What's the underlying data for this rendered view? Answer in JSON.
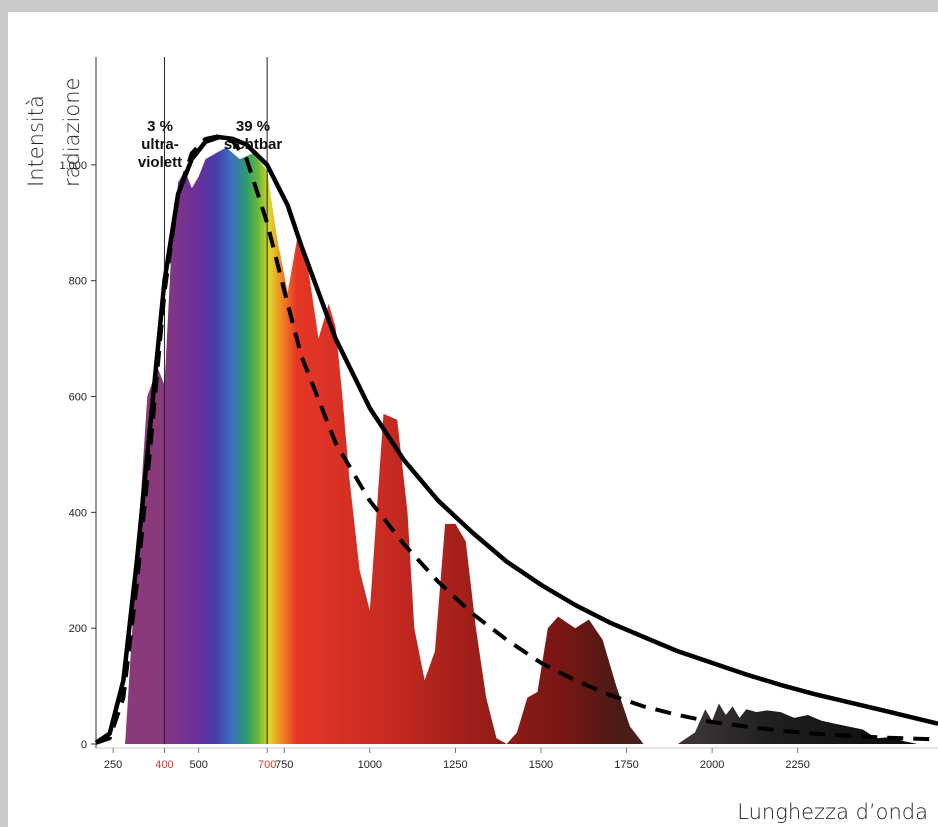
{
  "chart_data": {
    "type": "area",
    "title": "",
    "ylabel": [
      "Intensità",
      "radiazione"
    ],
    "xlabel": "Lunghezza d’onda",
    "x_ticks": [
      250,
      400,
      500,
      700,
      750,
      1000,
      1250,
      1500,
      1750,
      2000,
      2250
    ],
    "x_ticks_highlighted": [
      400,
      700
    ],
    "y_ticks": [
      0,
      200,
      400,
      600,
      800,
      1000
    ],
    "y_tick_labels": [
      "0",
      "200",
      "400",
      "600",
      "800",
      "1.000"
    ],
    "xlim": [
      200,
      2660
    ],
    "ylim": [
      0,
      1100
    ],
    "band_dividers": [
      400,
      700
    ],
    "bands": [
      {
        "percent": "3 %",
        "label_lines": [
          "ultra-",
          "violett"
        ]
      },
      {
        "percent": "39 %",
        "label_lines": [
          "sichtbar"
        ]
      }
    ],
    "series": [
      {
        "style": "solid-black-line",
        "x": [
          200,
          240,
          280,
          320,
          360,
          400,
          440,
          480,
          520,
          560,
          600,
          640,
          700,
          760,
          800,
          900,
          1000,
          1100,
          1200,
          1300,
          1400,
          1500,
          1600,
          1700,
          1800,
          1900,
          2000,
          2100,
          2200,
          2300,
          2400,
          2500,
          2660
        ],
        "y": [
          2,
          18,
          110,
          320,
          560,
          800,
          950,
          1010,
          1040,
          1048,
          1045,
          1035,
          1000,
          930,
          860,
          700,
          580,
          490,
          420,
          365,
          315,
          275,
          240,
          210,
          185,
          160,
          140,
          120,
          102,
          86,
          72,
          58,
          35
        ]
      },
      {
        "style": "dashed-black-line",
        "x": [
          200,
          240,
          280,
          320,
          360,
          400,
          440,
          480,
          520,
          560,
          600,
          640,
          700,
          760,
          800,
          900,
          1000,
          1100,
          1200,
          1300,
          1400,
          1500,
          1600,
          1700,
          1800,
          1900,
          2000,
          2100,
          2200,
          2300,
          2400,
          2500,
          2660
        ],
        "y": [
          2,
          10,
          80,
          280,
          520,
          780,
          950,
          1020,
          1045,
          1050,
          1040,
          1010,
          900,
          760,
          670,
          520,
          420,
          345,
          280,
          225,
          180,
          140,
          110,
          85,
          65,
          50,
          38,
          30,
          23,
          18,
          14,
          11,
          8
        ]
      },
      {
        "style": "spectrum-fill",
        "x": [
          285,
          320,
          350,
          380,
          400,
          420,
          440,
          460,
          480,
          500,
          520,
          550,
          580,
          620,
          660,
          700,
          730,
          760,
          790,
          820,
          850,
          880,
          900,
          920,
          940,
          970,
          1000,
          1040,
          1080,
          1110,
          1130,
          1160,
          1190,
          1220,
          1250,
          1280,
          1310,
          1340,
          1370,
          1400,
          1430,
          1460,
          1490,
          1520,
          1550,
          1600,
          1640,
          1680,
          1720,
          1760,
          1800,
          1850,
          1900,
          1950,
          1980,
          2000,
          2020,
          2040,
          2060,
          2080,
          2100,
          2130,
          2160,
          2200,
          2240,
          2280,
          2320,
          2360,
          2400,
          2440,
          2480,
          2520,
          2560,
          2600,
          2640
        ],
        "y": [
          0,
          330,
          600,
          650,
          620,
          850,
          970,
          990,
          960,
          980,
          1010,
          1020,
          1030,
          1010,
          1020,
          990,
          870,
          780,
          880,
          820,
          700,
          760,
          720,
          600,
          460,
          300,
          230,
          570,
          560,
          400,
          200,
          110,
          160,
          380,
          380,
          350,
          200,
          80,
          10,
          0,
          20,
          80,
          90,
          200,
          220,
          200,
          215,
          180,
          100,
          30,
          0,
          0,
          0,
          20,
          60,
          40,
          70,
          50,
          65,
          45,
          60,
          55,
          58,
          55,
          45,
          50,
          40,
          35,
          30,
          25,
          10,
          12,
          5,
          0,
          0
        ]
      }
    ]
  }
}
